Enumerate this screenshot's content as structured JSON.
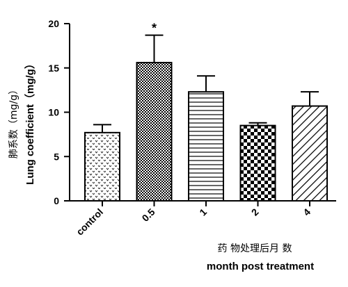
{
  "chart_data": {
    "type": "bar",
    "ylabel_cn": "肺系数（mg/g）",
    "ylabel_en": "Lung coefficient（mg/g）",
    "xlabel_cn": "药 物处理后月 数",
    "xlabel_en": "month post treatment",
    "categories": [
      "control",
      "0.5",
      "1",
      "2",
      "4"
    ],
    "values": [
      7.7,
      15.6,
      12.3,
      8.5,
      10.7
    ],
    "errors": [
      0.9,
      3.1,
      1.8,
      0.3,
      1.6
    ],
    "significance": [
      "",
      "*",
      "",
      "",
      ""
    ],
    "patterns": [
      "dots",
      "fine-check",
      "horizontal-lines",
      "checker",
      "diagonal-lines"
    ],
    "ylim": [
      0,
      20
    ],
    "yticks": [
      "0",
      "5",
      "10",
      "15",
      "20"
    ],
    "grid": false
  }
}
